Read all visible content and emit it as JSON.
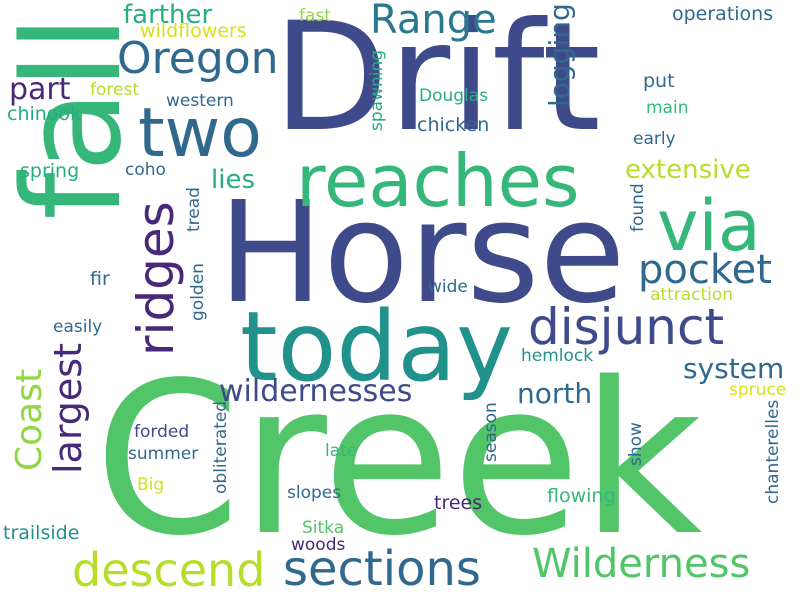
{
  "background": "#ffffff",
  "palette": {
    "indigo": "#3e4a89",
    "teal": "#2a788e",
    "green": "#35b779",
    "light_green": "#52c569",
    "yellow_green": "#b5de2b",
    "purple": "#482878",
    "deep_purple": "#440154",
    "dark_blue": "#31688e",
    "sea_green": "#26ad81",
    "yellow": "#d5e21a"
  },
  "words": [
    {
      "text": "Creek",
      "color": "#52c569"
    },
    {
      "text": "Horse",
      "color": "#3e4a89"
    },
    {
      "text": "Drift",
      "color": "#3e4a89"
    },
    {
      "text": "fall",
      "color": "#35b779"
    },
    {
      "text": "today",
      "color": "#21918c"
    },
    {
      "text": "reaches",
      "color": "#35b779"
    },
    {
      "text": "via",
      "color": "#35b779"
    },
    {
      "text": "two",
      "color": "#31688e"
    },
    {
      "text": "disjunct",
      "color": "#3e4a89"
    },
    {
      "text": "ridges",
      "color": "#482878"
    },
    {
      "text": "Oregon",
      "color": "#31688e"
    },
    {
      "text": "Range",
      "color": "#2a788e"
    },
    {
      "text": "pocket",
      "color": "#31688e"
    },
    {
      "text": "descend",
      "color": "#b5de2b"
    },
    {
      "text": "sections",
      "color": "#31688e"
    },
    {
      "text": "Wilderness",
      "color": "#52c569"
    },
    {
      "text": "largest",
      "color": "#482878"
    },
    {
      "text": "Coast",
      "color": "#8fd744"
    },
    {
      "text": "wildernesses",
      "color": "#3e4a89"
    },
    {
      "text": "north",
      "color": "#31688e"
    },
    {
      "text": "system",
      "color": "#31688e"
    },
    {
      "text": "extensive",
      "color": "#b5de2b"
    },
    {
      "text": "logging",
      "color": "#31688e"
    },
    {
      "text": "farther",
      "color": "#26ad81"
    },
    {
      "text": "lies",
      "color": "#26ad81"
    },
    {
      "text": "part",
      "color": "#482878"
    },
    {
      "text": "operations",
      "color": "#31688e"
    },
    {
      "text": "wildflowers",
      "color": "#d5e21a"
    },
    {
      "text": "fast",
      "color": "#8fd744"
    },
    {
      "text": "forest",
      "color": "#b5de2b"
    },
    {
      "text": "chinook",
      "color": "#26ad81"
    },
    {
      "text": "western",
      "color": "#31688e"
    },
    {
      "text": "Douglas",
      "color": "#26ad81"
    },
    {
      "text": "chicken",
      "color": "#31688e"
    },
    {
      "text": "spawning",
      "color": "#26ad81"
    },
    {
      "text": "put",
      "color": "#31688e"
    },
    {
      "text": "main",
      "color": "#35b779"
    },
    {
      "text": "early",
      "color": "#31688e"
    },
    {
      "text": "spring",
      "color": "#26ad81"
    },
    {
      "text": "coho",
      "color": "#31688e"
    },
    {
      "text": "tread",
      "color": "#31688e"
    },
    {
      "text": "found",
      "color": "#31688e"
    },
    {
      "text": "fir",
      "color": "#31688e"
    },
    {
      "text": "golden",
      "color": "#31688e"
    },
    {
      "text": "wide",
      "color": "#31688e"
    },
    {
      "text": "attraction",
      "color": "#b5de2b"
    },
    {
      "text": "easily",
      "color": "#31688e"
    },
    {
      "text": "hemlock",
      "color": "#21918c"
    },
    {
      "text": "spruce",
      "color": "#d5e21a"
    },
    {
      "text": "forded",
      "color": "#3e4a89"
    },
    {
      "text": "summer",
      "color": "#31688e"
    },
    {
      "text": "obliterated",
      "color": "#31688e"
    },
    {
      "text": "late",
      "color": "#35b779"
    },
    {
      "text": "season",
      "color": "#31688e"
    },
    {
      "text": "show",
      "color": "#31688e"
    },
    {
      "text": "Big",
      "color": "#d5e21a"
    },
    {
      "text": "flowing",
      "color": "#35b779"
    },
    {
      "text": "chanterelles",
      "color": "#31688e"
    },
    {
      "text": "slopes",
      "color": "#31688e"
    },
    {
      "text": "trees",
      "color": "#482878"
    },
    {
      "text": "Sitka",
      "color": "#52c569"
    },
    {
      "text": "trailside",
      "color": "#21918c"
    },
    {
      "text": "woods",
      "color": "#482878"
    }
  ]
}
